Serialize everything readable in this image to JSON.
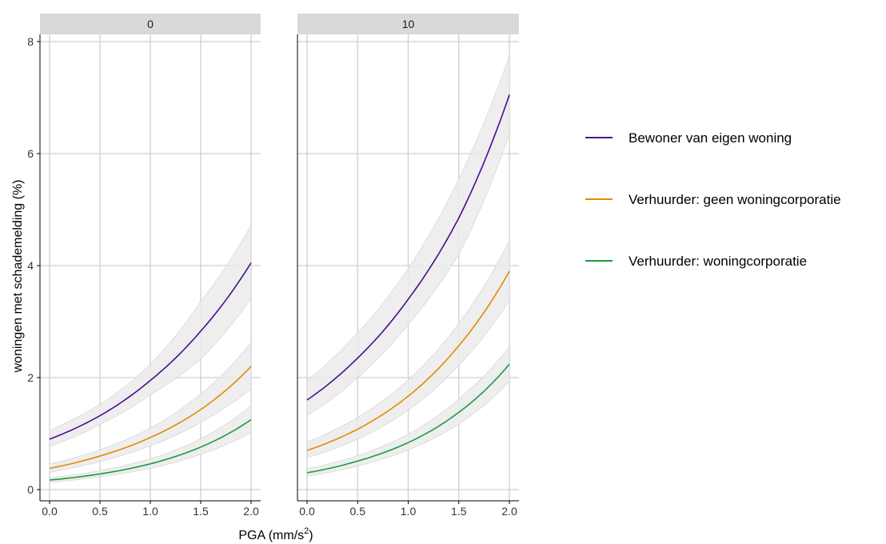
{
  "chart_data": {
    "type": "line",
    "xlabel": "PGA (mm/s",
    "xlabel_superscript": "2",
    "xlabel_suffix": ")",
    "ylabel": "woningen met schademelding (%)",
    "xlim": [
      0,
      2
    ],
    "ylim": [
      0,
      8
    ],
    "x_ticks": [
      "0.0",
      "0.5",
      "1.0",
      "1.5",
      "2.0"
    ],
    "y_ticks": [
      "0",
      "2",
      "4",
      "6",
      "8"
    ],
    "grid": true,
    "legend_position": "right",
    "panels": [
      {
        "strip_label": "0",
        "series": [
          {
            "name": "Bewoner van eigen woning",
            "color": "#4B0C8F",
            "x": [
              0,
              0.5,
              1.0,
              1.5,
              2.0
            ],
            "y": [
              0.9,
              1.32,
              1.95,
              2.83,
              4.05
            ],
            "lower": [
              0.77,
              1.16,
              1.69,
              2.33,
              3.42
            ],
            "upper": [
              1.06,
              1.52,
              2.24,
              3.36,
              4.72
            ]
          },
          {
            "name": "Verhuurder: geen woningcorporatie",
            "color": "#E38A00",
            "x": [
              0,
              0.5,
              1.0,
              1.5,
              2.0
            ],
            "y": [
              0.38,
              0.6,
              0.93,
              1.43,
              2.2
            ],
            "lower": [
              0.31,
              0.5,
              0.78,
              1.2,
              1.8
            ],
            "upper": [
              0.46,
              0.71,
              1.1,
              1.71,
              2.63
            ]
          },
          {
            "name": "Verhuurder: woningcorporatie",
            "color": "#1F9A3E",
            "x": [
              0,
              0.5,
              1.0,
              1.5,
              2.0
            ],
            "y": [
              0.17,
              0.28,
              0.46,
              0.76,
              1.25
            ],
            "lower": [
              0.13,
              0.23,
              0.38,
              0.63,
              1.02
            ],
            "upper": [
              0.21,
              0.34,
              0.55,
              0.91,
              1.5
            ]
          }
        ]
      },
      {
        "strip_label": "10",
        "series": [
          {
            "name": "Bewoner van eigen woning",
            "color": "#4B0C8F",
            "x": [
              0,
              0.5,
              1.0,
              1.5,
              2.0
            ],
            "y": [
              1.6,
              2.35,
              3.4,
              4.85,
              7.05
            ],
            "lower": [
              1.32,
              2.0,
              2.95,
              4.2,
              6.35
            ],
            "upper": [
              1.95,
              2.8,
              3.95,
              5.55,
              7.75
            ]
          },
          {
            "name": "Verhuurder: geen woningcorporatie",
            "color": "#E38A00",
            "x": [
              0,
              0.5,
              1.0,
              1.5,
              2.0
            ],
            "y": [
              0.7,
              1.08,
              1.67,
              2.57,
              3.9
            ],
            "lower": [
              0.57,
              0.9,
              1.42,
              2.22,
              3.38
            ],
            "upper": [
              0.85,
              1.29,
              1.96,
              2.97,
              4.45
            ]
          },
          {
            "name": "Verhuurder: woningcorporatie",
            "color": "#1F9A3E",
            "x": [
              0,
              0.5,
              1.0,
              1.5,
              2.0
            ],
            "y": [
              0.3,
              0.51,
              0.84,
              1.38,
              2.24
            ],
            "lower": [
              0.24,
              0.42,
              0.71,
              1.17,
              1.93
            ],
            "upper": [
              0.37,
              0.61,
              0.99,
              1.62,
              2.55
            ]
          }
        ]
      }
    ],
    "legend": [
      {
        "name": "Bewoner van eigen woning",
        "color": "#4B0C8F"
      },
      {
        "name": "Verhuurder: geen woningcorporatie",
        "color": "#E38A00"
      },
      {
        "name": "Verhuurder: woningcorporatie",
        "color": "#1F9A3E"
      }
    ],
    "colors": {
      "band": "#EBEBEB",
      "grid": "#D0D0D0",
      "strip": "#D9D9D9"
    }
  }
}
